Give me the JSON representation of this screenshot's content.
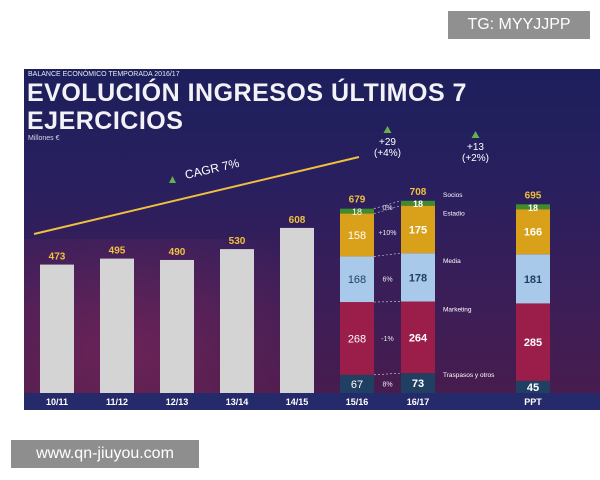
{
  "watermark_top": "TG: MYYJJPP",
  "watermark_bottom": "www.qn-jiuyou.com",
  "slide": {
    "kicker": "BALANCE ECONÓMICO TEMPORADA 2016/17",
    "title": "EVOLUCIÓN INGRESOS ÚLTIMOS 7 EJERCICIOS",
    "subtitle": "Millones €"
  },
  "chart_data": {
    "type": "bar",
    "title": "EVOLUCIÓN INGRESOS ÚLTIMOS 7 EJERCICIOS",
    "ylabel": "Millones €",
    "ylim": [
      0,
      720
    ],
    "categories": [
      "10/11",
      "11/12",
      "12/13",
      "13/14",
      "14/15",
      "15/16",
      "16/17",
      "PPT"
    ],
    "totals": [
      473,
      495,
      490,
      530,
      608,
      679,
      708,
      695
    ],
    "simple_values": [
      473,
      495,
      490,
      530,
      608
    ],
    "trend_label": "CAGR 7%",
    "stack_components": [
      "Traspasos y otros",
      "Marketing",
      "Media",
      "Estadio",
      "Socios"
    ],
    "stack_colors": [
      "#1f3f63",
      "#9b1e4a",
      "#a9c9ea",
      "#d9a019",
      "#3e8c2e"
    ],
    "stacks": [
      {
        "category": "15/16",
        "values": [
          67,
          268,
          168,
          158,
          18
        ],
        "total": 679
      },
      {
        "category": "16/17",
        "values": [
          73,
          264,
          178,
          175,
          18
        ],
        "total": 708
      },
      {
        "category": "PPT",
        "values": [
          45,
          285,
          181,
          166,
          18
        ],
        "total": 695
      }
    ],
    "growth_pcts": [
      "8%",
      "-1%",
      "6%",
      "+10%",
      "0%"
    ],
    "growth_annotations": [
      {
        "text": "+29",
        "pct": "(+4%)"
      },
      {
        "text": "+13",
        "pct": "(+2%)"
      }
    ],
    "colors": {
      "simple_bar": "#d4d4d4",
      "total_label": "#f0c040",
      "trend_line": "#f0c040",
      "arrow": "#66b050"
    }
  }
}
